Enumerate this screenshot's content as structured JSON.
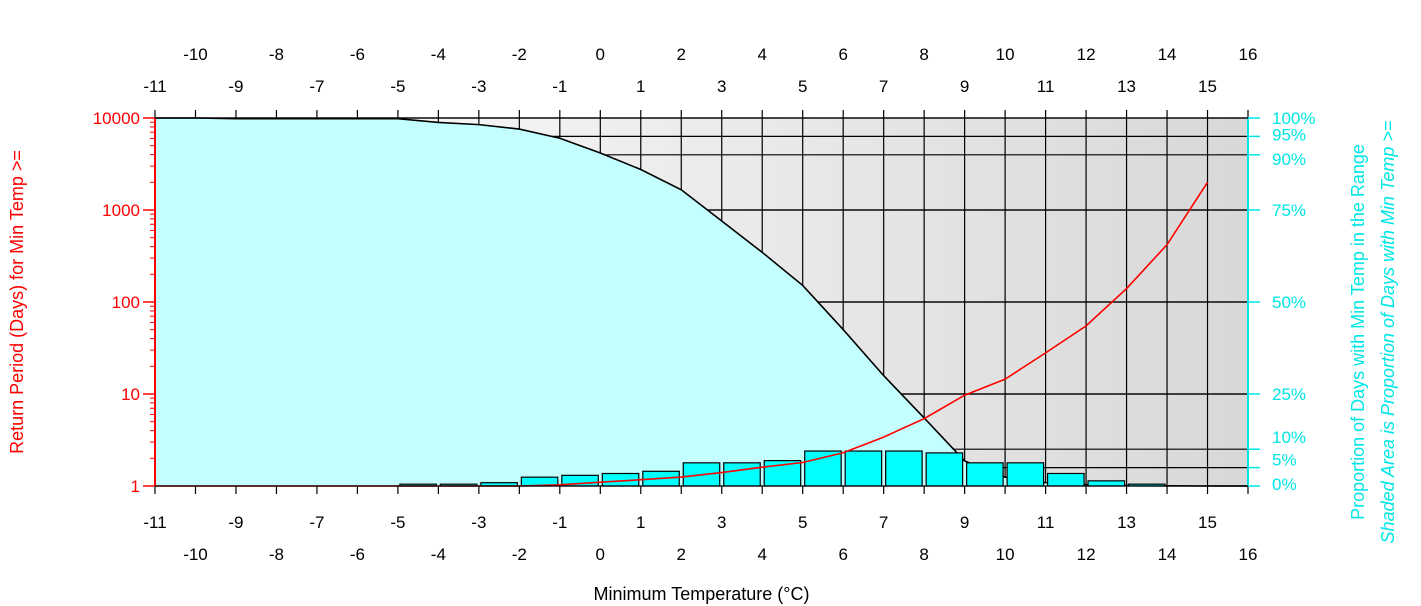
{
  "colors": {
    "left_axis": "#ff0000",
    "right_axis": "#00e5e5",
    "area_fill": "#c4ffff",
    "bar_fill": "#00ffff",
    "return_line": "#ff0000",
    "grid": "#000000",
    "background_shade_light": "#ffffff",
    "background_shade_dark": "#d8d8d8"
  },
  "chart_data": {
    "type": "bar",
    "xlabel": "Minimum Temperature (°C)",
    "ylabel_left": "Return Period (Days) for Min Temp >=",
    "ylabel_right": "Proportion of Days with Min Temp in the Range",
    "ylabel_right2": "Shaded Area is Proportion of Days with Min Temp >=",
    "xlim": [
      -11,
      16
    ],
    "ylim_left": [
      1,
      10000
    ],
    "left_scale": "log",
    "grid": true,
    "x_ticks_odd": [
      "-11",
      "-9",
      "-7",
      "-5",
      "-3",
      "-1",
      "1",
      "3",
      "5",
      "7",
      "9",
      "11",
      "13",
      "15"
    ],
    "x_ticks_even": [
      "-10",
      "-8",
      "-6",
      "-4",
      "-2",
      "0",
      "2",
      "4",
      "6",
      "8",
      "10",
      "12",
      "14",
      "16"
    ],
    "y_left_ticks": [
      {
        "value": 1,
        "label": "1"
      },
      {
        "value": 10,
        "label": "10"
      },
      {
        "value": 100,
        "label": "100"
      },
      {
        "value": 1000,
        "label": "1000"
      },
      {
        "value": 10000,
        "label": "10000"
      }
    ],
    "y_right_ticks": [
      {
        "value": 0,
        "label": "0%"
      },
      {
        "value": 5,
        "label": "5%"
      },
      {
        "value": 10,
        "label": "10%"
      },
      {
        "value": 25,
        "label": "25%"
      },
      {
        "value": 50,
        "label": "50%"
      },
      {
        "value": 75,
        "label": "75%"
      },
      {
        "value": 90,
        "label": "90%"
      },
      {
        "value": 95,
        "label": "95%"
      },
      {
        "value": 100,
        "label": "100%"
      }
    ],
    "series": [
      {
        "type": "area",
        "x": [
          -11,
          -10,
          -9,
          -8,
          -7,
          -6,
          -5,
          -4,
          -3,
          -2,
          -1,
          0,
          1,
          2,
          3,
          4,
          5,
          6,
          7,
          8,
          9,
          10,
          11,
          12,
          13,
          14,
          15,
          16
        ],
        "values": [
          100,
          100,
          99.8,
          99.8,
          99.8,
          99.8,
          99.8,
          98.8,
          98.2,
          97,
          94.5,
          90.5,
          86,
          80.5,
          72,
          63.5,
          54.5,
          42.5,
          30,
          18.5,
          6.8,
          2.4,
          0.9,
          0.4,
          0.15,
          0.05,
          0,
          0
        ]
      },
      {
        "type": "bar",
        "x": [
          -5,
          -4,
          -3,
          -2,
          -1,
          0,
          1,
          2,
          3,
          4,
          5,
          6,
          7,
          8,
          9,
          10,
          11,
          12,
          13
        ],
        "values": [
          0.5,
          0.5,
          0.9,
          2.4,
          2.9,
          3.4,
          4,
          6.3,
          6.3,
          6.9,
          9.5,
          9.5,
          9.5,
          9,
          6.3,
          6.3,
          3.4,
          1.4,
          0.5
        ]
      },
      {
        "type": "line",
        "x": [
          -11,
          -10,
          -9,
          -8,
          -7,
          -6,
          -5,
          -4,
          -3,
          -2,
          -1,
          0,
          1,
          2,
          3,
          4,
          5,
          6,
          7,
          8,
          9,
          10,
          11,
          12,
          13,
          14,
          15
        ],
        "values": [
          1,
          1,
          1,
          1,
          1,
          1,
          1,
          1,
          1,
          1,
          1.03,
          1.1,
          1.17,
          1.25,
          1.4,
          1.6,
          1.8,
          2.3,
          3.4,
          5.4,
          9.7,
          14.5,
          28,
          55,
          140,
          420,
          2000
        ]
      }
    ]
  }
}
